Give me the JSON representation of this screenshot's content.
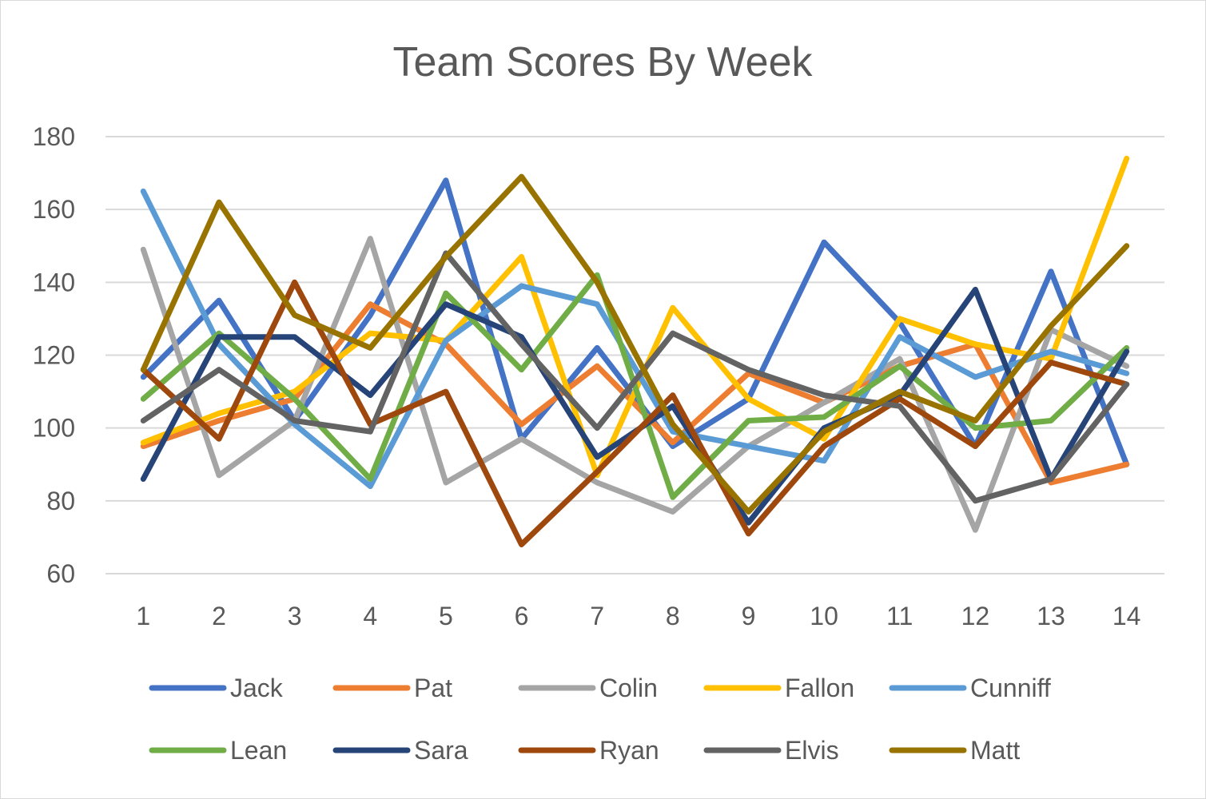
{
  "chart_data": {
    "type": "line",
    "title": "Team Scores By Week",
    "xlabel": "",
    "ylabel": "",
    "categories": [
      "1",
      "2",
      "3",
      "4",
      "5",
      "6",
      "7",
      "8",
      "9",
      "10",
      "11",
      "12",
      "13",
      "14"
    ],
    "ylim": [
      60,
      180
    ],
    "yticks": [
      60,
      80,
      100,
      120,
      140,
      160,
      180
    ],
    "grid": true,
    "legend_position": "bottom",
    "series": [
      {
        "name": "Jack",
        "color": "#4472C4",
        "values": [
          114,
          135,
          102,
          131,
          168,
          97,
          122,
          95,
          108,
          151,
          129,
          95,
          143,
          90
        ]
      },
      {
        "name": "Pat",
        "color": "#ED7D31",
        "values": [
          95,
          102,
          108,
          134,
          123,
          101,
          117,
          96,
          115,
          107,
          117,
          123,
          85,
          90
        ]
      },
      {
        "name": "Colin",
        "color": "#A5A5A5",
        "values": [
          149,
          87,
          102,
          152,
          85,
          97,
          85,
          77,
          95,
          107,
          119,
          72,
          127,
          117
        ]
      },
      {
        "name": "Fallon",
        "color": "#FFC000",
        "values": [
          96,
          104,
          110,
          126,
          124,
          147,
          87,
          133,
          108,
          97,
          130,
          123,
          119,
          174
        ]
      },
      {
        "name": "Cunniff",
        "color": "#5B9BD5",
        "values": [
          165,
          123,
          101,
          84,
          124,
          139,
          134,
          99,
          95,
          91,
          125,
          114,
          121,
          115
        ]
      },
      {
        "name": "Lean",
        "color": "#70AD47",
        "values": [
          108,
          126,
          108,
          86,
          137,
          116,
          142,
          81,
          102,
          103,
          117,
          100,
          102,
          122
        ]
      },
      {
        "name": "Sara",
        "color": "#264478",
        "values": [
          86,
          125,
          125,
          109,
          134,
          125,
          92,
          106,
          74,
          100,
          109,
          138,
          86,
          121
        ]
      },
      {
        "name": "Ryan",
        "color": "#9E480E",
        "values": [
          116,
          97,
          140,
          101,
          110,
          68,
          88,
          109,
          71,
          95,
          108,
          95,
          118,
          112
        ]
      },
      {
        "name": "Elvis",
        "color": "#636363",
        "values": [
          102,
          116,
          102,
          99,
          148,
          123,
          100,
          126,
          116,
          109,
          106,
          80,
          86,
          112
        ]
      },
      {
        "name": "Matt",
        "color": "#997300",
        "values": [
          116,
          162,
          131,
          122,
          147,
          169,
          140,
          101,
          77,
          99,
          110,
          102,
          128,
          150
        ]
      }
    ]
  }
}
